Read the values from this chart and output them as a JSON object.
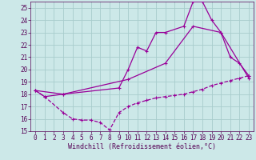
{
  "xlabel": "Windchill (Refroidissement éolien,°C)",
  "bg_color": "#cce8e8",
  "grid_color": "#a8cccc",
  "line_color": "#990099",
  "xlim": [
    -0.5,
    23.5
  ],
  "ylim": [
    15,
    25.5
  ],
  "xticks": [
    0,
    1,
    2,
    3,
    4,
    5,
    6,
    7,
    8,
    9,
    10,
    11,
    12,
    13,
    14,
    15,
    16,
    17,
    18,
    19,
    20,
    21,
    22,
    23
  ],
  "yticks": [
    15,
    16,
    17,
    18,
    19,
    20,
    21,
    22,
    23,
    24,
    25
  ],
  "line1_x": [
    0,
    1,
    3,
    9,
    10,
    11,
    12,
    13,
    14,
    16,
    17,
    18,
    19,
    20,
    21,
    22,
    23
  ],
  "line1_y": [
    18.3,
    17.8,
    18.0,
    18.5,
    20.0,
    21.8,
    21.5,
    23.0,
    23.0,
    23.5,
    25.5,
    25.5,
    24.0,
    23.0,
    21.0,
    20.5,
    19.5
  ],
  "line2_x": [
    0,
    3,
    10,
    14,
    17,
    20,
    23
  ],
  "line2_y": [
    18.3,
    18.0,
    19.2,
    20.5,
    23.5,
    23.0,
    19.3
  ],
  "line3_x": [
    0,
    1,
    3,
    4,
    5,
    6,
    7,
    8,
    9,
    10,
    11,
    12,
    13,
    14,
    15,
    16,
    17,
    18,
    19,
    20,
    21,
    22,
    23
  ],
  "line3_y": [
    18.3,
    17.8,
    16.5,
    16.0,
    15.9,
    15.9,
    15.7,
    15.1,
    16.5,
    17.0,
    17.3,
    17.5,
    17.7,
    17.8,
    17.9,
    18.0,
    18.2,
    18.4,
    18.7,
    18.9,
    19.1,
    19.3,
    19.5
  ],
  "tick_fontsize": 5.5,
  "xlabel_fontsize": 6.0
}
